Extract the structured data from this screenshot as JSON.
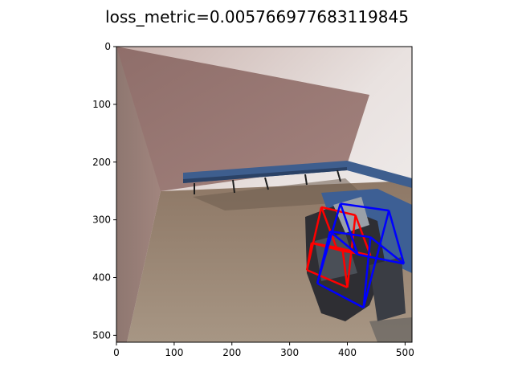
{
  "chart_data": {
    "type": "image",
    "title": "loss_metric=0.005766977683119845",
    "xlabel": "",
    "ylabel": "",
    "xlim": [
      0,
      512
    ],
    "ylim": [
      512,
      0
    ],
    "x_ticks": [
      0,
      100,
      200,
      300,
      400,
      500
    ],
    "y_ticks": [
      0,
      100,
      200,
      300,
      400,
      500
    ],
    "grid": false,
    "boxes": [
      {
        "color": "#ff0000",
        "corners": [
          [
            355,
            278
          ],
          [
            414,
            292
          ],
          [
            440,
            362
          ],
          [
            381,
            348
          ],
          [
            338,
            340
          ],
          [
            392,
            354
          ],
          [
            400,
            417
          ],
          [
            330,
            387
          ]
        ],
        "edges": [
          [
            0,
            1
          ],
          [
            1,
            2
          ],
          [
            2,
            3
          ],
          [
            3,
            0
          ],
          [
            4,
            5
          ],
          [
            5,
            6
          ],
          [
            6,
            7
          ],
          [
            7,
            4
          ],
          [
            0,
            7
          ],
          [
            1,
            6
          ],
          [
            2,
            5
          ],
          [
            3,
            4
          ]
        ]
      },
      {
        "color": "#0000ff",
        "corners": [
          [
            388,
            272
          ],
          [
            472,
            284
          ],
          [
            498,
            376
          ],
          [
            418,
            360
          ],
          [
            370,
            320
          ],
          [
            440,
            330
          ],
          [
            428,
            452
          ],
          [
            348,
            410
          ]
        ],
        "edges": [
          [
            0,
            1
          ],
          [
            1,
            2
          ],
          [
            2,
            3
          ],
          [
            3,
            0
          ],
          [
            4,
            5
          ],
          [
            5,
            6
          ],
          [
            6,
            7
          ],
          [
            7,
            4
          ],
          [
            0,
            7
          ],
          [
            1,
            6
          ],
          [
            2,
            5
          ],
          [
            3,
            4
          ]
        ]
      }
    ]
  }
}
